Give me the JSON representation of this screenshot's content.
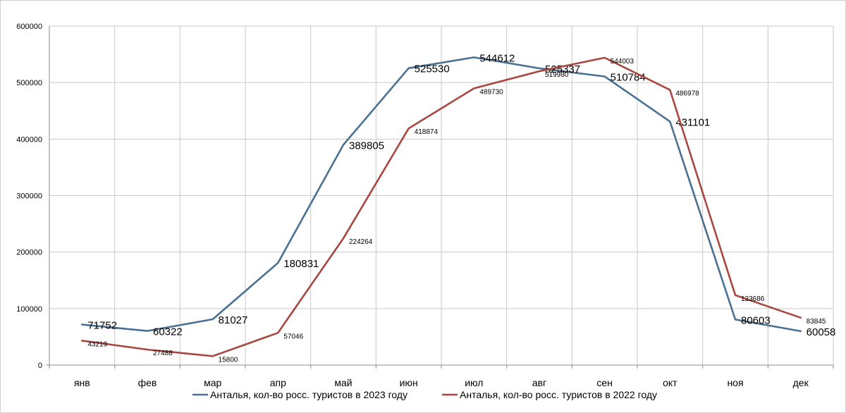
{
  "chart_data": {
    "type": "line",
    "title": "",
    "xlabel": "",
    "ylabel": "",
    "categories": [
      "янв",
      "фев",
      "мар",
      "апр",
      "май",
      "июн",
      "июл",
      "авг",
      "сен",
      "окт",
      "ноя",
      "дек"
    ],
    "ylim": [
      0,
      600000
    ],
    "yticks": [
      0,
      100000,
      200000,
      300000,
      400000,
      500000,
      600000
    ],
    "grid": true,
    "legend_position": "bottom",
    "series": [
      {
        "name": "Анталья, кол-во росс. туристов в 2023 году",
        "color": "#4a7193",
        "label_size": "large",
        "values": [
          71752,
          60322,
          81027,
          180831,
          389805,
          525530,
          544612,
          525337,
          510784,
          431101,
          80603,
          60058
        ]
      },
      {
        "name": "Анталья, кол-во росс. туристов в 2022 году",
        "color": "#a84640",
        "label_size": "small",
        "values": [
          43219,
          27488,
          15800,
          57046,
          224264,
          418874,
          489730,
          519980,
          544003,
          486978,
          123686,
          83845
        ]
      }
    ]
  }
}
